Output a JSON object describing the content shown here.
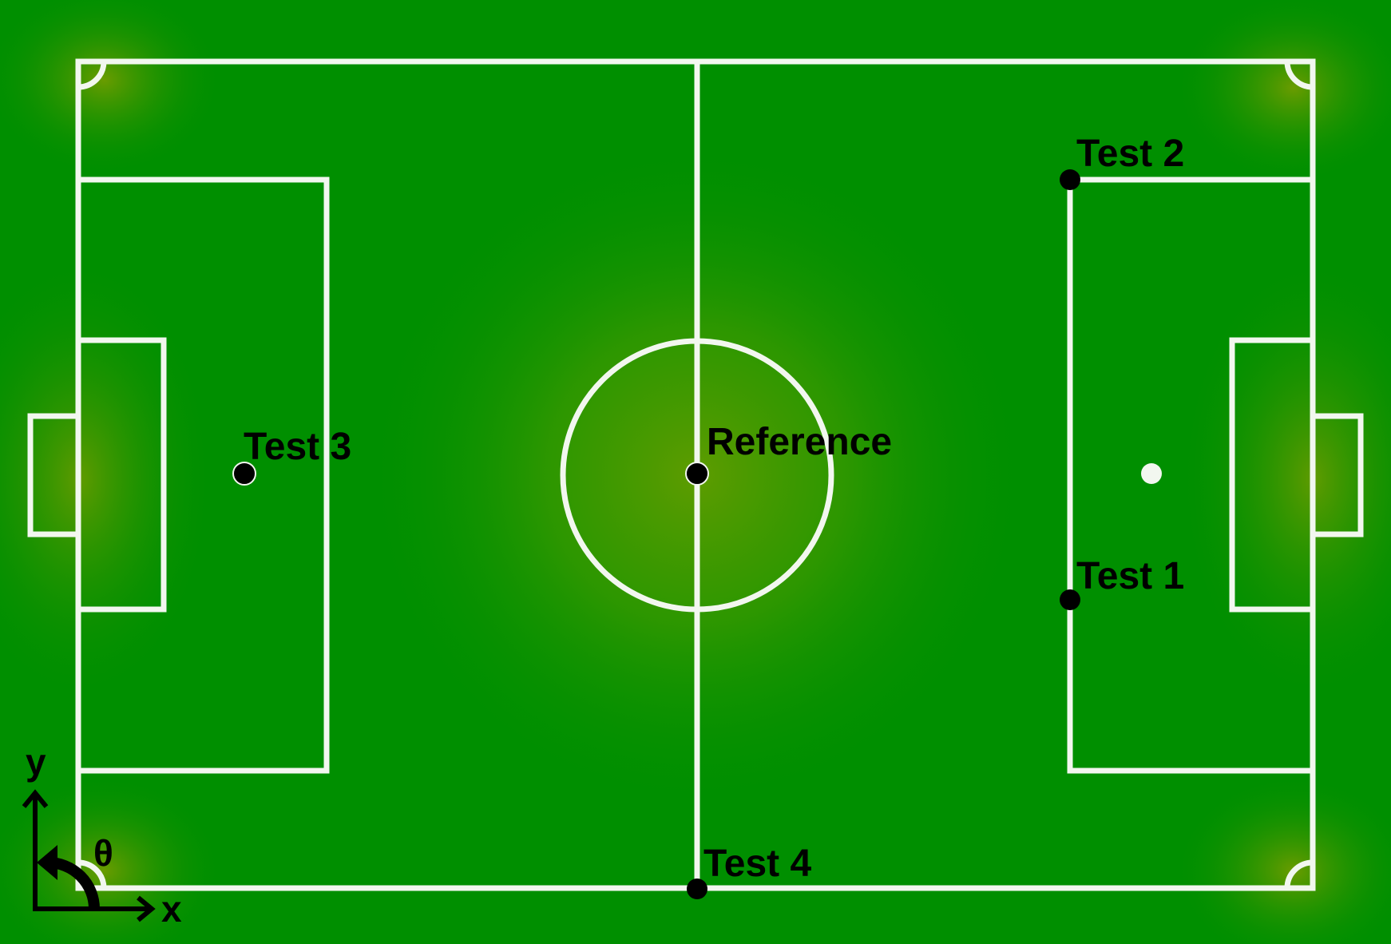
{
  "colors": {
    "grass": "#008f00",
    "grass_highlight": "#5e9c00",
    "lines": "#f2f7ef",
    "marker": "#000000",
    "penalty_spot": "#f2f7ef"
  },
  "test_points": {
    "reference": "Reference",
    "test1": "Test 1",
    "test2": "Test 2",
    "test3": "Test 3",
    "test4": "Test 4"
  },
  "axes": {
    "x": "x",
    "y": "y",
    "theta": "θ"
  }
}
